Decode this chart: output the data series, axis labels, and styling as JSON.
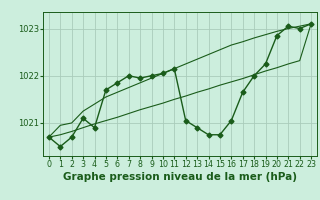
{
  "title": "Graphe pression niveau de la mer (hPa)",
  "x_values": [
    0,
    1,
    2,
    3,
    4,
    5,
    6,
    7,
    8,
    9,
    10,
    11,
    12,
    13,
    14,
    15,
    16,
    17,
    18,
    19,
    20,
    21,
    22,
    23
  ],
  "y_main": [
    1020.7,
    1020.5,
    1020.7,
    1021.1,
    1020.9,
    1021.7,
    1021.85,
    1022.0,
    1021.95,
    1022.0,
    1022.05,
    1022.15,
    1021.05,
    1020.9,
    1020.75,
    1020.75,
    1021.05,
    1021.65,
    1022.0,
    1022.25,
    1022.85,
    1023.05,
    1023.0,
    1023.1
  ],
  "y_trend1": [
    1020.7,
    1020.95,
    1021.0,
    1021.25,
    1021.4,
    1021.55,
    1021.65,
    1021.75,
    1021.85,
    1021.95,
    1022.05,
    1022.15,
    1022.25,
    1022.35,
    1022.45,
    1022.55,
    1022.65,
    1022.72,
    1022.8,
    1022.87,
    1022.94,
    1023.0,
    1023.05,
    1023.1
  ],
  "y_trend2": [
    1020.7,
    1020.75,
    1020.82,
    1020.9,
    1020.98,
    1021.05,
    1021.12,
    1021.2,
    1021.28,
    1021.35,
    1021.42,
    1021.5,
    1021.57,
    1021.65,
    1021.72,
    1021.8,
    1021.87,
    1021.94,
    1022.02,
    1022.1,
    1022.17,
    1022.25,
    1022.32,
    1023.1
  ],
  "bg_color": "#cceedd",
  "grid_color": "#aaccbb",
  "line_color": "#1a5c1a",
  "line_width": 1.0,
  "marker": "D",
  "marker_size": 2.5,
  "ylim": [
    1020.3,
    1023.35
  ],
  "yticks": [
    1021,
    1022,
    1023
  ],
  "xlim": [
    -0.5,
    23.5
  ],
  "title_fontsize": 7.5,
  "tick_fontsize": 6.0,
  "fig_bg_color": "#cceedd"
}
